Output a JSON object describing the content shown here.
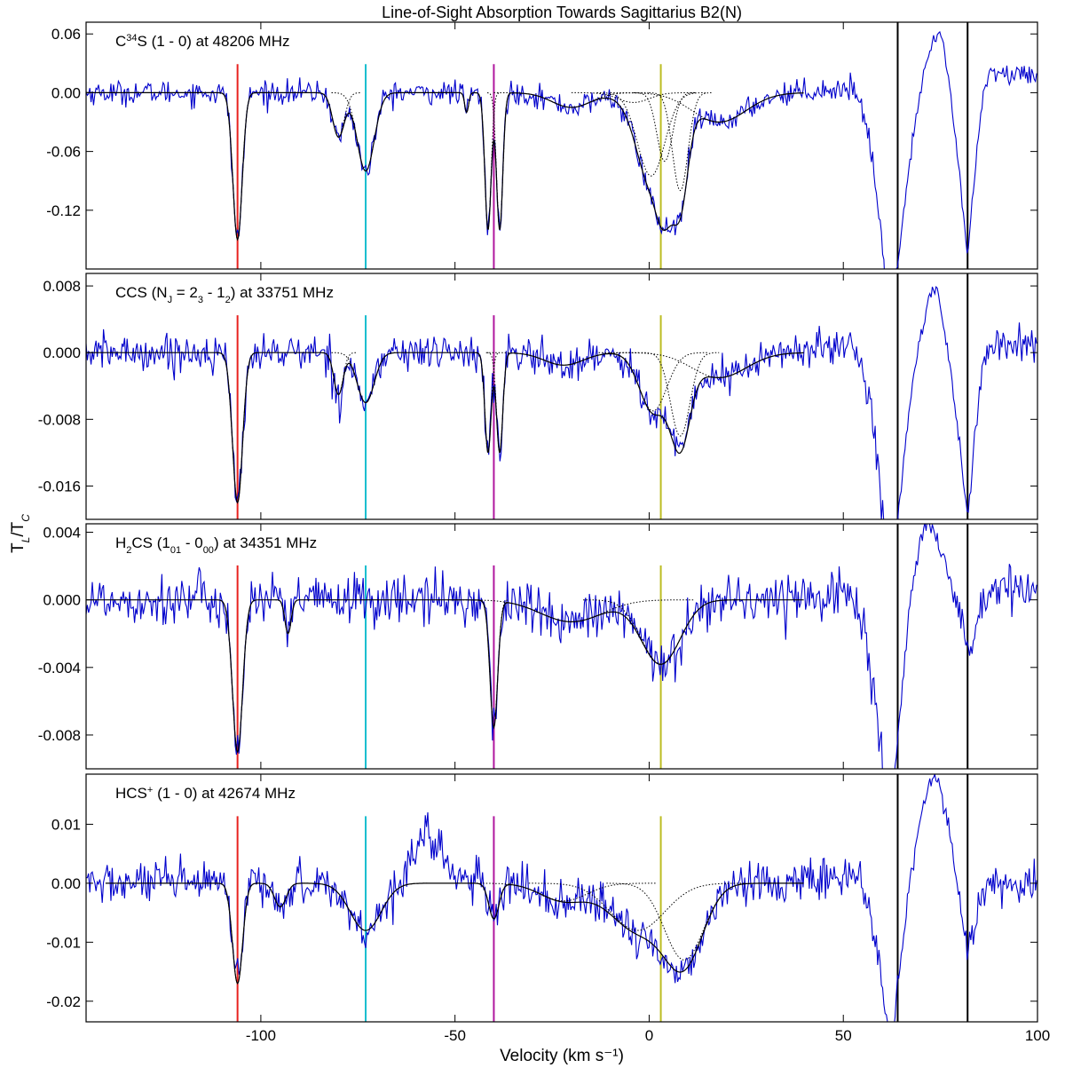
{
  "chart_data": {
    "type": "line",
    "title": "Line-of-Sight Absorption Towards Sagittarius B2(N)",
    "xlabel": "Velocity (km s⁻¹)",
    "ylabel": "T_L/T_C",
    "xlim": [
      -145,
      100
    ],
    "x_ticks": [
      -100,
      -50,
      0,
      50,
      100
    ],
    "x_tick_labels": [
      "-100",
      "-50",
      "0",
      "50",
      "100"
    ],
    "colors": {
      "data": "#0000cc",
      "fit": "#000000"
    },
    "velocity_markers": [
      {
        "x": -106,
        "color": "#e8221f"
      },
      {
        "x": -73,
        "color": "#17becf"
      },
      {
        "x": -40,
        "color": "#b0189e"
      },
      {
        "x": 3,
        "color": "#bcbd22"
      }
    ],
    "boundary_lines": [
      64,
      82
    ],
    "panels": [
      {
        "label_main": "C",
        "label_sup": "34",
        "label_rest": "S (1 - 0) at 48206 MHz",
        "ylim": [
          -0.18,
          0.072
        ],
        "y_ticks": [
          0.06,
          0.0,
          -0.06,
          -0.12
        ],
        "y_tick_labels": [
          "0.06",
          "0.00",
          "-0.06",
          "-0.12"
        ],
        "noise": 0.006,
        "continuum_offset": 0.0,
        "fit_components": [
          {
            "center": -106,
            "depth": -0.15,
            "width": 1.2
          },
          {
            "center": -80,
            "depth": -0.045,
            "width": 1.5
          },
          {
            "center": -73,
            "depth": -0.08,
            "width": 2.2
          },
          {
            "center": -47,
            "depth": -0.02,
            "width": 0.5
          },
          {
            "center": -41.5,
            "depth": -0.14,
            "width": 0.8
          },
          {
            "center": -38.5,
            "depth": -0.14,
            "width": 0.8
          },
          {
            "center": -20,
            "depth": -0.015,
            "width": 5
          },
          {
            "center": -4,
            "depth": -0.01,
            "width": 4
          },
          {
            "center": 0.5,
            "depth": -0.085,
            "width": 3.5
          },
          {
            "center": 4,
            "depth": -0.07,
            "width": 2
          },
          {
            "center": 8,
            "depth": -0.1,
            "width": 2
          },
          {
            "center": 18,
            "depth": -0.03,
            "width": 7
          }
        ],
        "fit_x_range": [
          -145,
          40
        ],
        "sidelobe": {
          "drop_start": 52,
          "depth": -0.25,
          "peak_x": 75,
          "peak": 0.06,
          "trough_x": 82,
          "trough": -0.17,
          "tail": 0.02
        }
      },
      {
        "label_main": "CCS (N",
        "label_sub": "J",
        "label_rest": " = 2",
        "label_sub2": "3",
        "label_rest2": " - 1",
        "label_sub3": "2",
        "label_rest3": ") at 33751 MHz",
        "ylim": [
          -0.02,
          0.0095
        ],
        "y_ticks": [
          0.008,
          0.0,
          -0.008,
          -0.016
        ],
        "y_tick_labels": [
          "0.008",
          "0.000",
          "-0.008",
          "-0.016"
        ],
        "noise": 0.0011,
        "continuum_offset": 0.0,
        "fit_components": [
          {
            "center": -106,
            "depth": -0.018,
            "width": 1.3
          },
          {
            "center": -80,
            "depth": -0.005,
            "width": 1.2
          },
          {
            "center": -73,
            "depth": -0.006,
            "width": 2.2
          },
          {
            "center": -41.5,
            "depth": -0.012,
            "width": 0.8
          },
          {
            "center": -38.5,
            "depth": -0.012,
            "width": 0.8
          },
          {
            "center": -22,
            "depth": -0.0015,
            "width": 5
          },
          {
            "center": 1,
            "depth": -0.007,
            "width": 3.5
          },
          {
            "center": 8,
            "depth": -0.01,
            "width": 2.5
          },
          {
            "center": 18,
            "depth": -0.003,
            "width": 7
          }
        ],
        "fit_x_range": [
          -145,
          40
        ],
        "sidelobe": {
          "drop_start": 52,
          "depth": -0.03,
          "peak_x": 74,
          "peak": 0.0075,
          "trough_x": 82,
          "trough": -0.02,
          "tail": 0.001
        }
      },
      {
        "label_main": "H",
        "label_sub": "2",
        "label_rest": "CS (1",
        "label_sub2": "01",
        "label_rest2": " - 0",
        "label_sub3": "00",
        "label_rest3": ") at 34351 MHz",
        "ylim": [
          -0.01,
          0.0045
        ],
        "y_ticks": [
          0.004,
          0.0,
          -0.004,
          -0.008
        ],
        "y_tick_labels": [
          "0.004",
          "0.000",
          "-0.004",
          "-0.008"
        ],
        "noise": 0.00075,
        "continuum_offset": 0.0,
        "fit_components": [
          {
            "center": -106,
            "depth": -0.009,
            "width": 1.3
          },
          {
            "center": -93,
            "depth": -0.002,
            "width": 0.8
          },
          {
            "center": -40,
            "depth": -0.0075,
            "width": 1.0
          },
          {
            "center": -20,
            "depth": -0.0013,
            "width": 8
          },
          {
            "center": 3,
            "depth": -0.0038,
            "width": 5
          }
        ],
        "fit_x_range": [
          -145,
          40
        ],
        "sidelobe": {
          "drop_start": 50,
          "depth": -0.014,
          "peak_x": 72,
          "peak": 0.0045,
          "trough_x": 83,
          "trough": -0.0035,
          "tail": 0.0006
        }
      },
      {
        "label_main": "HCS",
        "label_sup": "+",
        "label_rest": " (1 - 0) at 42674 MHz",
        "ylim": [
          -0.0235,
          0.0185
        ],
        "y_ticks": [
          0.01,
          0.0,
          -0.01,
          -0.02
        ],
        "y_tick_labels": [
          "0.01",
          "0.00",
          "-0.01",
          "-0.02"
        ],
        "noise": 0.0018,
        "continuum_offset": 0.0,
        "fit_components": [
          {
            "center": -106,
            "depth": -0.017,
            "width": 1.3
          },
          {
            "center": -95,
            "depth": -0.004,
            "width": 1.5
          },
          {
            "center": -73,
            "depth": -0.008,
            "width": 4
          },
          {
            "center": -40,
            "depth": -0.006,
            "width": 1.3
          },
          {
            "center": -22,
            "depth": -0.003,
            "width": 6
          },
          {
            "center": -3,
            "depth": -0.008,
            "width": 7
          },
          {
            "center": 9,
            "depth": -0.013,
            "width": 5
          }
        ],
        "fit_x_range": [
          -140,
          40
        ],
        "sidelobe": {
          "drop_start": 52,
          "depth": -0.03,
          "peak_x": 74,
          "peak": 0.018,
          "trough_x": 82,
          "trough": -0.012,
          "tail": 0.0
        },
        "bump": {
          "center": -57,
          "height": 0.008,
          "width": 4
        }
      }
    ]
  }
}
